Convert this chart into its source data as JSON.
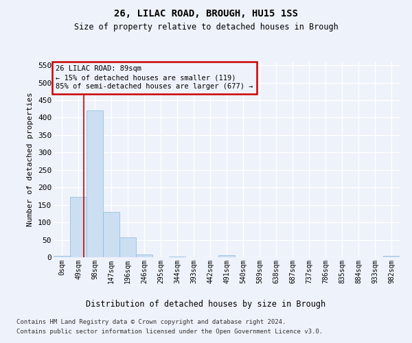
{
  "title1": "26, LILAC ROAD, BROUGH, HU15 1SS",
  "title2": "Size of property relative to detached houses in Brough",
  "xlabel": "Distribution of detached houses by size in Brough",
  "ylabel": "Number of detached properties",
  "categories": [
    "0sqm",
    "49sqm",
    "98sqm",
    "147sqm",
    "196sqm",
    "246sqm",
    "295sqm",
    "344sqm",
    "393sqm",
    "442sqm",
    "491sqm",
    "540sqm",
    "589sqm",
    "638sqm",
    "687sqm",
    "737sqm",
    "786sqm",
    "835sqm",
    "884sqm",
    "933sqm",
    "982sqm"
  ],
  "values": [
    4,
    172,
    420,
    130,
    57,
    7,
    0,
    1,
    0,
    0,
    5,
    0,
    0,
    0,
    0,
    0,
    0,
    0,
    0,
    0,
    4
  ],
  "bar_color": "#ccdff2",
  "bar_edge_color": "#8ab8d8",
  "ylim_max": 560,
  "yticks": [
    0,
    50,
    100,
    150,
    200,
    250,
    300,
    350,
    400,
    450,
    500,
    550
  ],
  "annotation_line1": "26 LILAC ROAD: 89sqm",
  "annotation_line2": "← 15% of detached houses are smaller (119)",
  "annotation_line3": "85% of semi-detached houses are larger (677) →",
  "vline_color": "#cc0000",
  "box_edge_color": "#cc0000",
  "background_color": "#eef2fa",
  "grid_color": "#ffffff",
  "footnote1": "Contains HM Land Registry data © Crown copyright and database right 2024.",
  "footnote2": "Contains public sector information licensed under the Open Government Licence v3.0."
}
